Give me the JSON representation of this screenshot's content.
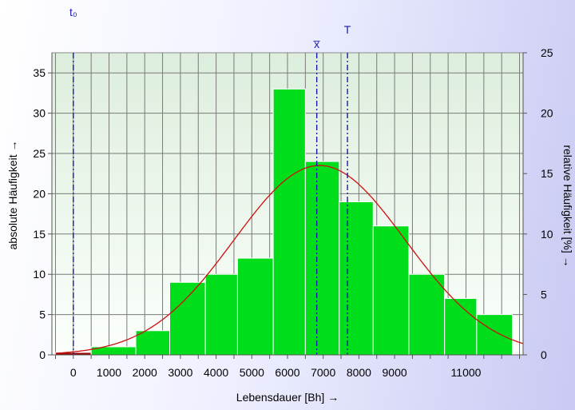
{
  "chart_data": {
    "type": "bar",
    "x_tick_labels": [
      "0",
      "1000",
      "2000",
      "3000",
      "4000",
      "5000",
      "6000",
      "7000",
      "8000",
      "9000",
      "11000"
    ],
    "xlabel": "Lebensdauer [Bh] →",
    "ylabel_left": "absolute Häufigkeit →",
    "ylabel_right": "relative Häufigkeit  [%] →",
    "ylim_left": [
      0,
      37.5
    ],
    "ylim_right": [
      0,
      25
    ],
    "left_ticks": [
      "0",
      "5",
      "10",
      "15",
      "20",
      "25",
      "30",
      "35"
    ],
    "right_ticks": [
      "0",
      "5",
      "10",
      "15",
      "20",
      "25"
    ],
    "bins": [
      {
        "range": [
          -500,
          500
        ],
        "value": 0.3
      },
      {
        "range": [
          500,
          1750
        ],
        "value": 1
      },
      {
        "range": [
          1750,
          2700
        ],
        "value": 3
      },
      {
        "range": [
          2700,
          3700
        ],
        "value": 9
      },
      {
        "range": [
          3700,
          4600
        ],
        "value": 10
      },
      {
        "range": [
          4600,
          5600
        ],
        "value": 12
      },
      {
        "range": [
          5600,
          6500
        ],
        "value": 33
      },
      {
        "range": [
          6500,
          7450
        ],
        "value": 24
      },
      {
        "range": [
          7450,
          8400
        ],
        "value": 19
      },
      {
        "range": [
          8400,
          9400
        ],
        "value": 16
      },
      {
        "range": [
          9400,
          10400
        ],
        "value": 10
      },
      {
        "range": [
          10400,
          11300
        ],
        "value": 7
      },
      {
        "range": [
          11300,
          12300
        ],
        "value": 5
      }
    ],
    "fit_curve": {
      "type": "normal",
      "mean": 6900,
      "sd": 2400,
      "peak": 23.5
    },
    "markers": [
      {
        "label": "t₀",
        "x": 0
      },
      {
        "label": "x̅",
        "x": 6820
      },
      {
        "label": "T",
        "x": 7680
      }
    ],
    "grid": true
  },
  "colors": {
    "bars": "#00dd1a",
    "bar_edge": "#ffffff",
    "curve": "#cc1010",
    "markers": "#1a1aa8",
    "grid": "#7a7a7a",
    "plot_bg_top": "#e8f3e8",
    "plot_bg_bottom": "#ffffff"
  }
}
